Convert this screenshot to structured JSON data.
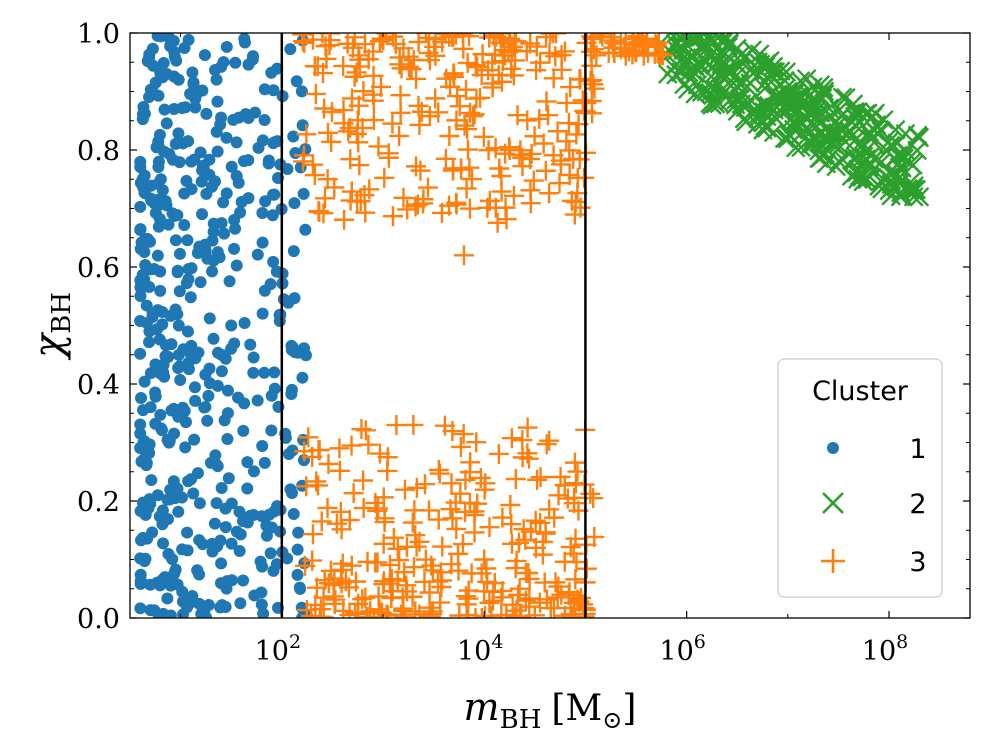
{
  "chart_data": {
    "type": "scatter",
    "xscale": "log",
    "xlim_log10": [
      0.5,
      8.8
    ],
    "ylim": [
      0.0,
      1.0
    ],
    "xlabel": {
      "main": "m",
      "sub": "BH",
      "unit": "[M",
      "unit_sub": "⊙",
      "unit_close": "]"
    },
    "ylabel": {
      "main": "χ",
      "sub": "BH"
    },
    "xticks": [
      {
        "exp": 2,
        "base": "10",
        "sup": "2"
      },
      {
        "exp": 4,
        "base": "10",
        "sup": "4"
      },
      {
        "exp": 6,
        "base": "10",
        "sup": "6"
      },
      {
        "exp": 8,
        "base": "10",
        "sup": "8"
      }
    ],
    "yticks": [
      {
        "value": 0.0,
        "label": "0.0"
      },
      {
        "value": 0.2,
        "label": "0.2"
      },
      {
        "value": 0.4,
        "label": "0.4"
      },
      {
        "value": 0.6,
        "label": "0.6"
      },
      {
        "value": 0.8,
        "label": "0.8"
      },
      {
        "value": 1.0,
        "label": "1.0"
      }
    ],
    "vlines_log10": [
      2,
      5
    ],
    "legend": {
      "title": "Cluster",
      "placement": "lower right"
    },
    "series": [
      {
        "name": "1",
        "marker": "circle",
        "color": "#1f77b4",
        "count": 520,
        "log10_x_range": [
          0.6,
          2.25
        ],
        "y_range": [
          0.0,
          1.0
        ],
        "sample_points": [
          [
            0.9,
            0.98
          ],
          [
            1.5,
            0.5
          ],
          [
            1.9,
            0.38
          ],
          [
            2.1,
            0.39
          ],
          [
            2.2,
            0.0
          ]
        ]
      },
      {
        "name": "2",
        "marker": "x",
        "color": "#2ca02c",
        "count": 340,
        "log10_x_range": [
          5.8,
          8.3
        ],
        "y_range": [
          0.72,
          1.0
        ],
        "sample_points": [
          [
            6.0,
            0.98
          ],
          [
            7.0,
            0.9
          ],
          [
            8.3,
            0.72
          ]
        ]
      },
      {
        "name": "3",
        "marker": "plus",
        "color": "#ff7f0e",
        "count": 600,
        "log10_x_range": [
          2.2,
          5.8
        ],
        "y_range": [
          0.0,
          1.0
        ],
        "sample_points": [
          [
            3.8,
            0.62
          ],
          [
            3.3,
            0.33
          ],
          [
            4.0,
            0.1
          ],
          [
            5.5,
            0.98
          ]
        ]
      }
    ]
  }
}
